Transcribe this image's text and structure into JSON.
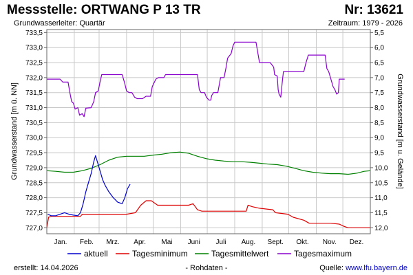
{
  "header": {
    "title": "Messstelle: ORTWANG P 13 TR",
    "number": "Nr: 13621",
    "subtitle_left": "Grundwasserleiter: Quartär",
    "subtitle_right": "Zeitraum: 1979 - 2026"
  },
  "footer": {
    "created": "erstellt:  14.04.2026",
    "center": "- Rohdaten -",
    "source_label": "Quelle: ",
    "source_link": "www.lfu.bayern.de"
  },
  "colors": {
    "aktuell": "#0000cc",
    "minimum": "#dd0000",
    "mittel": "#008000",
    "maximum": "#8800cc",
    "grid": "#c8c8c8"
  },
  "chart_data": {
    "type": "line",
    "ylabel": "Grundwasserstand [m ü. NN]",
    "y2label": "Grundwasserstand [m u. Gelände]",
    "ylim": [
      726.8,
      733.6
    ],
    "y_ticks": [
      "727,0",
      "727,5",
      "728,0",
      "728,5",
      "729,0",
      "729,5",
      "730,0",
      "730,5",
      "731,0",
      "731,5",
      "732,0",
      "732,5",
      "733,0",
      "733,5"
    ],
    "y2_ticks": [
      "12,0",
      "11,5",
      "11,0",
      "10,5",
      "10,0",
      "9,5",
      "9,0",
      "8,5",
      "8,0",
      "7,5",
      "7,0",
      "6,5",
      "6,0",
      "5,5"
    ],
    "x_ticks": [
      "Jan.",
      "Feb.",
      "Mrz.",
      "Apr.",
      "Mai",
      "Juni",
      "Juli",
      "Aug.",
      "Sept.",
      "Okt.",
      "Nov.",
      "Dez."
    ],
    "x_unit": "day of year",
    "grid": true,
    "legend_position": "bottom",
    "series": [
      {
        "name": "aktuell",
        "points": [
          [
            1,
            727.45
          ],
          [
            5,
            727.4
          ],
          [
            10,
            727.4
          ],
          [
            15,
            727.45
          ],
          [
            20,
            727.5
          ],
          [
            25,
            727.45
          ],
          [
            30,
            727.42
          ],
          [
            35,
            727.4
          ],
          [
            38,
            727.5
          ],
          [
            41,
            727.8
          ],
          [
            44,
            728.2
          ],
          [
            47,
            728.5
          ],
          [
            50,
            728.8
          ],
          [
            53,
            729.2
          ],
          [
            55,
            729.4
          ],
          [
            57,
            729.2
          ],
          [
            60,
            728.9
          ],
          [
            63,
            728.6
          ],
          [
            66,
            728.4
          ],
          [
            70,
            728.2
          ],
          [
            75,
            728.0
          ],
          [
            80,
            727.85
          ],
          [
            85,
            727.8
          ],
          [
            88,
            728.0
          ],
          [
            91,
            728.3
          ],
          [
            94,
            728.45
          ]
        ]
      },
      {
        "name": "Tagesminimum",
        "points": [
          [
            0,
            727.0
          ],
          [
            2,
            727.35
          ],
          [
            5,
            727.38
          ],
          [
            30,
            727.38
          ],
          [
            38,
            727.38
          ],
          [
            40,
            727.45
          ],
          [
            60,
            727.45
          ],
          [
            90,
            727.45
          ],
          [
            100,
            727.5
          ],
          [
            106,
            727.75
          ],
          [
            112,
            727.9
          ],
          [
            118,
            727.9
          ],
          [
            125,
            727.75
          ],
          [
            150,
            727.75
          ],
          [
            160,
            727.75
          ],
          [
            165,
            727.8
          ],
          [
            170,
            727.6
          ],
          [
            175,
            727.55
          ],
          [
            200,
            727.55
          ],
          [
            225,
            727.55
          ],
          [
            227,
            727.75
          ],
          [
            232,
            727.7
          ],
          [
            240,
            727.65
          ],
          [
            255,
            727.6
          ],
          [
            258,
            727.5
          ],
          [
            272,
            727.45
          ],
          [
            278,
            727.35
          ],
          [
            290,
            727.25
          ],
          [
            296,
            727.15
          ],
          [
            320,
            727.15
          ],
          [
            330,
            727.12
          ],
          [
            335,
            727.05
          ],
          [
            340,
            727.0
          ],
          [
            345,
            727.0
          ],
          [
            365,
            727.0
          ]
        ]
      },
      {
        "name": "Tagesmittelwert",
        "points": [
          [
            0,
            728.9
          ],
          [
            10,
            728.88
          ],
          [
            20,
            728.85
          ],
          [
            30,
            728.85
          ],
          [
            40,
            728.9
          ],
          [
            50,
            728.98
          ],
          [
            60,
            729.1
          ],
          [
            70,
            729.25
          ],
          [
            80,
            729.35
          ],
          [
            90,
            729.38
          ],
          [
            100,
            729.38
          ],
          [
            110,
            729.38
          ],
          [
            120,
            729.42
          ],
          [
            130,
            729.45
          ],
          [
            140,
            729.5
          ],
          [
            150,
            729.52
          ],
          [
            160,
            729.48
          ],
          [
            170,
            729.38
          ],
          [
            180,
            729.3
          ],
          [
            190,
            729.25
          ],
          [
            200,
            729.22
          ],
          [
            210,
            729.2
          ],
          [
            220,
            729.2
          ],
          [
            230,
            729.18
          ],
          [
            240,
            729.15
          ],
          [
            250,
            729.12
          ],
          [
            260,
            729.1
          ],
          [
            270,
            729.05
          ],
          [
            280,
            728.98
          ],
          [
            290,
            728.9
          ],
          [
            300,
            728.85
          ],
          [
            310,
            728.82
          ],
          [
            320,
            728.8
          ],
          [
            330,
            728.8
          ],
          [
            340,
            728.78
          ],
          [
            350,
            728.82
          ],
          [
            358,
            728.88
          ],
          [
            365,
            728.9
          ]
        ]
      },
      {
        "name": "Tagesmaximum",
        "points": [
          [
            0,
            731.95
          ],
          [
            15,
            731.95
          ],
          [
            18,
            731.85
          ],
          [
            24,
            731.85
          ],
          [
            26,
            731.5
          ],
          [
            28,
            731.2
          ],
          [
            30,
            731.15
          ],
          [
            32,
            730.95
          ],
          [
            35,
            731.0
          ],
          [
            37,
            730.75
          ],
          [
            40,
            730.8
          ],
          [
            42,
            730.7
          ],
          [
            44,
            730.98
          ],
          [
            50,
            731.0
          ],
          [
            53,
            731.2
          ],
          [
            55,
            731.5
          ],
          [
            58,
            731.55
          ],
          [
            60,
            731.85
          ],
          [
            62,
            732.1
          ],
          [
            80,
            732.1
          ],
          [
            85,
            732.1
          ],
          [
            88,
            731.8
          ],
          [
            90,
            731.55
          ],
          [
            93,
            731.5
          ],
          [
            96,
            731.5
          ],
          [
            99,
            731.35
          ],
          [
            102,
            731.3
          ],
          [
            108,
            731.3
          ],
          [
            112,
            731.38
          ],
          [
            117,
            731.38
          ],
          [
            119,
            731.7
          ],
          [
            123,
            731.95
          ],
          [
            126,
            732.0
          ],
          [
            132,
            732.0
          ],
          [
            134,
            732.1
          ],
          [
            170,
            732.1
          ],
          [
            172,
            731.6
          ],
          [
            174,
            731.5
          ],
          [
            178,
            731.5
          ],
          [
            180,
            731.35
          ],
          [
            183,
            731.25
          ],
          [
            185,
            731.25
          ],
          [
            186,
            731.4
          ],
          [
            188,
            731.5
          ],
          [
            193,
            731.5
          ],
          [
            196,
            732.0
          ],
          [
            200,
            732.0
          ],
          [
            202,
            732.3
          ],
          [
            204,
            732.65
          ],
          [
            208,
            732.8
          ],
          [
            210,
            733.05
          ],
          [
            212,
            733.18
          ],
          [
            225,
            733.18
          ],
          [
            236,
            733.18
          ],
          [
            240,
            732.5
          ],
          [
            252,
            732.5
          ],
          [
            256,
            732.35
          ],
          [
            257,
            732.1
          ],
          [
            260,
            732.05
          ],
          [
            261,
            731.6
          ],
          [
            262,
            731.45
          ],
          [
            264,
            731.35
          ],
          [
            266,
            731.95
          ],
          [
            267,
            732.2
          ],
          [
            290,
            732.2
          ],
          [
            292,
            732.45
          ],
          [
            295,
            732.75
          ],
          [
            314,
            732.75
          ],
          [
            316,
            732.3
          ],
          [
            318,
            732.2
          ],
          [
            320,
            732.0
          ],
          [
            323,
            731.7
          ],
          [
            325,
            731.6
          ],
          [
            327,
            731.45
          ],
          [
            329,
            731.5
          ],
          [
            330,
            731.95
          ],
          [
            333,
            731.95
          ],
          [
            336,
            731.95
          ]
        ]
      }
    ]
  }
}
